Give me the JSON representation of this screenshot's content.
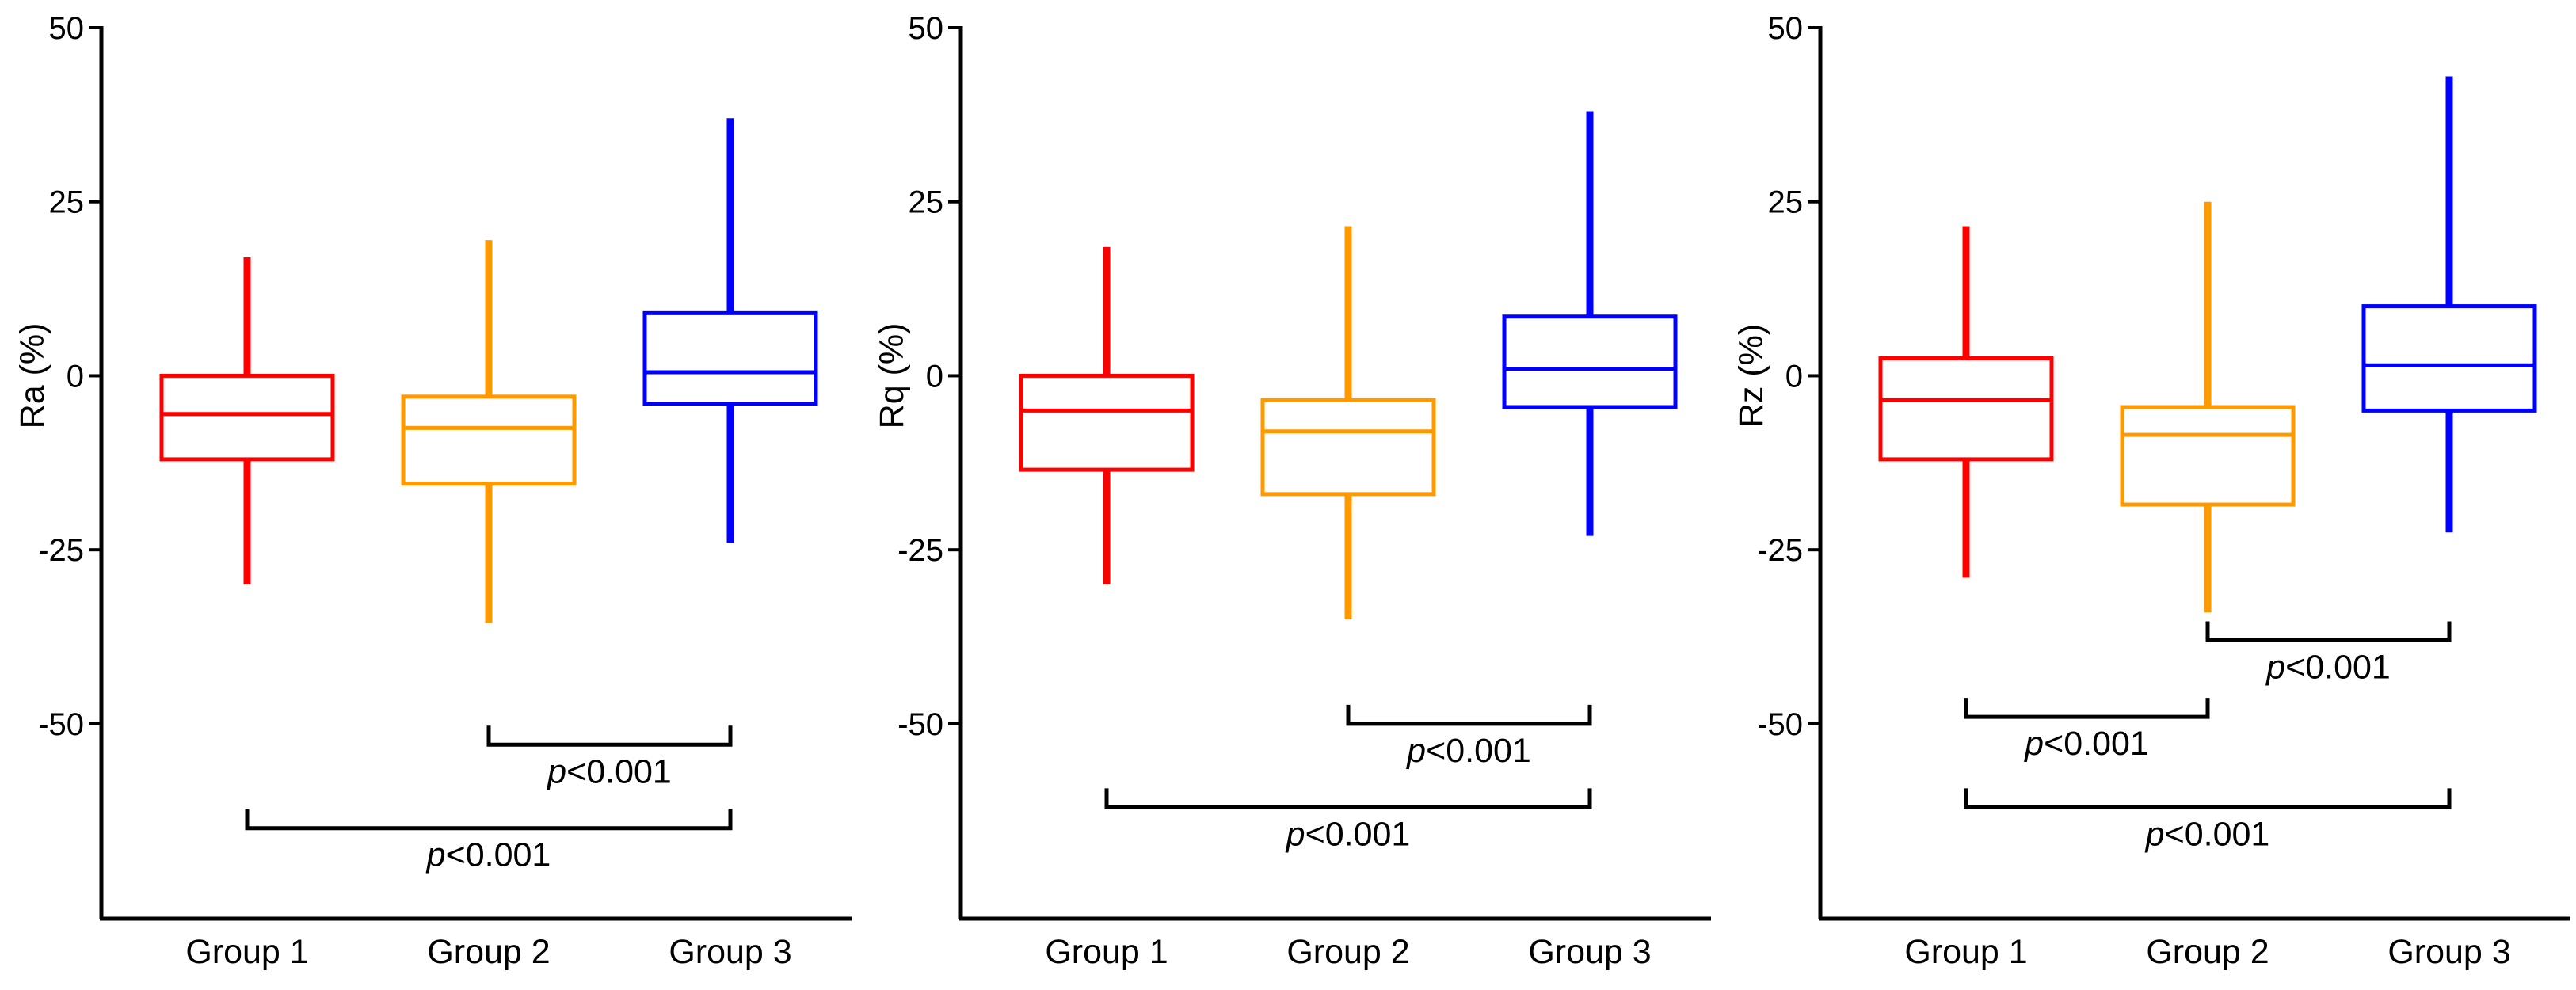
{
  "chart_data": [
    {
      "type": "box",
      "ylabel": "Ra (%)",
      "ylim": [
        -78,
        50
      ],
      "yticks": [
        50,
        25,
        0,
        -25,
        -50
      ],
      "ytick_labels": [
        "50",
        "25",
        "0",
        "-25",
        "-50"
      ],
      "categories": [
        "Group 1",
        "Group 2",
        "Group 3"
      ],
      "colors": [
        "#ff0000",
        "#ff9900",
        "#0000ff"
      ],
      "boxes": [
        {
          "whisker_low": -30,
          "q1": -12,
          "median": -5.5,
          "q3": 0,
          "whisker_high": 17
        },
        {
          "whisker_low": -35.5,
          "q1": -15.5,
          "median": -7.5,
          "q3": -3,
          "whisker_high": 19.5
        },
        {
          "whisker_low": -24,
          "q1": -4,
          "median": 0.5,
          "q3": 9,
          "whisker_high": 37
        }
      ],
      "significance": [
        {
          "from": 1,
          "to": 2,
          "y": -53,
          "label_prefix": "p",
          "label_rest": "<0.001"
        },
        {
          "from": 0,
          "to": 2,
          "y": -65,
          "label_prefix": "p",
          "label_rest": "<0.001"
        }
      ]
    },
    {
      "type": "box",
      "ylabel": "Rq (%)",
      "ylim": [
        -78,
        50
      ],
      "yticks": [
        50,
        25,
        0,
        -25,
        -50
      ],
      "ytick_labels": [
        "50",
        "25",
        "0",
        "-25",
        "-50"
      ],
      "categories": [
        "Group 1",
        "Group 2",
        "Group 3"
      ],
      "colors": [
        "#ff0000",
        "#ff9900",
        "#0000ff"
      ],
      "boxes": [
        {
          "whisker_low": -30,
          "q1": -13.5,
          "median": -5,
          "q3": 0,
          "whisker_high": 18.5
        },
        {
          "whisker_low": -35,
          "q1": -17,
          "median": -8,
          "q3": -3.5,
          "whisker_high": 21.5
        },
        {
          "whisker_low": -23,
          "q1": -4.5,
          "median": 1,
          "q3": 8.5,
          "whisker_high": 38
        }
      ],
      "significance": [
        {
          "from": 1,
          "to": 2,
          "y": -50,
          "label_prefix": "p",
          "label_rest": "<0.001"
        },
        {
          "from": 0,
          "to": 2,
          "y": -62,
          "label_prefix": "p",
          "label_rest": "<0.001"
        }
      ]
    },
    {
      "type": "box",
      "ylabel": "Rz (%)",
      "ylim": [
        -78,
        50
      ],
      "yticks": [
        50,
        25,
        0,
        -25,
        -50
      ],
      "ytick_labels": [
        "50",
        "25",
        "0",
        "-25",
        "-50"
      ],
      "categories": [
        "Group 1",
        "Group 2",
        "Group 3"
      ],
      "colors": [
        "#ff0000",
        "#ff9900",
        "#0000ff"
      ],
      "boxes": [
        {
          "whisker_low": -29,
          "q1": -12,
          "median": -3.5,
          "q3": 2.5,
          "whisker_high": 21.5
        },
        {
          "whisker_low": -34,
          "q1": -18.5,
          "median": -8.5,
          "q3": -4.5,
          "whisker_high": 25
        },
        {
          "whisker_low": -22.5,
          "q1": -5,
          "median": 1.5,
          "q3": 10,
          "whisker_high": 43
        }
      ],
      "significance": [
        {
          "from": 1,
          "to": 2,
          "y": -38,
          "label_prefix": "p",
          "label_rest": "<0.001"
        },
        {
          "from": 0,
          "to": 1,
          "y": -49,
          "label_prefix": "p",
          "label_rest": "<0.001"
        },
        {
          "from": 0,
          "to": 2,
          "y": -62,
          "label_prefix": "p",
          "label_rest": "<0.001"
        }
      ]
    }
  ]
}
